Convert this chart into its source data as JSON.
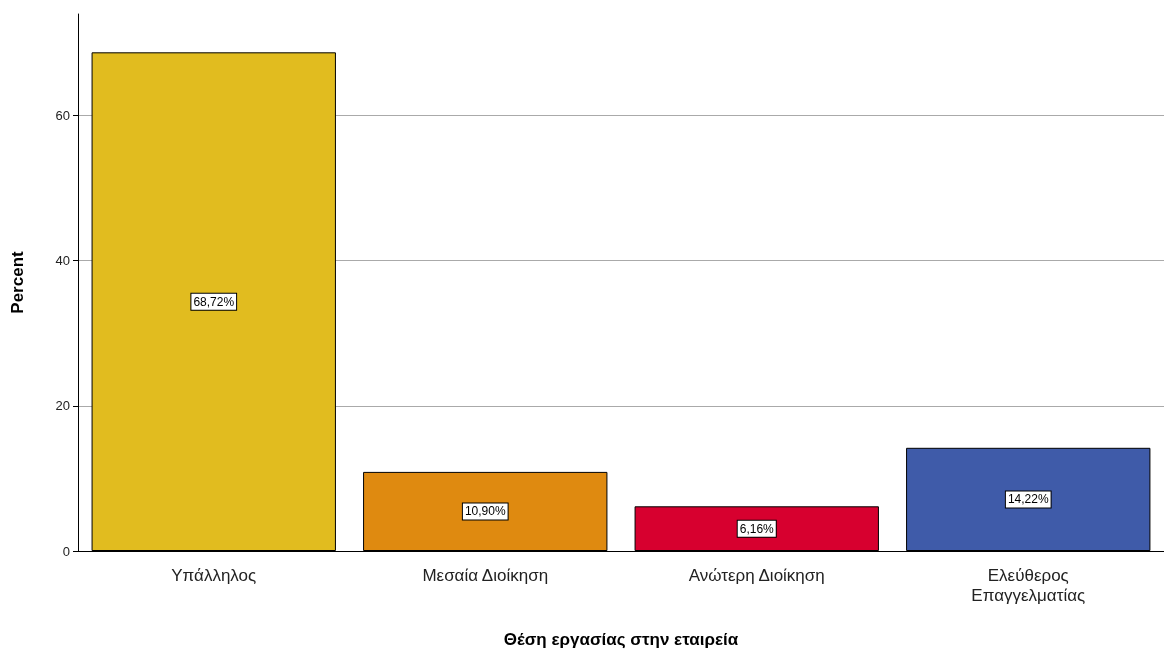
{
  "chart_data": {
    "type": "bar",
    "xlabel": "Θέση εργασίας στην εταιρεία",
    "ylabel": "Percent",
    "categories": [
      "Υπάλληλος",
      "Μεσαία Διοίκηση",
      "Ανώτερη Διοίκηση",
      "Ελεύθερος Επαγγελματίας"
    ],
    "values": [
      68.72,
      10.9,
      6.16,
      14.22
    ],
    "colors": [
      "#e1bc1f",
      "#df8a10",
      "#d7002f",
      "#3f5ba9"
    ],
    "value_labels": [
      "68,72%",
      "10,90%",
      "6,16%",
      "14,22%"
    ],
    "ylim": [
      0,
      74
    ],
    "yticks": [
      0,
      20,
      40,
      60
    ],
    "grid": "y"
  }
}
